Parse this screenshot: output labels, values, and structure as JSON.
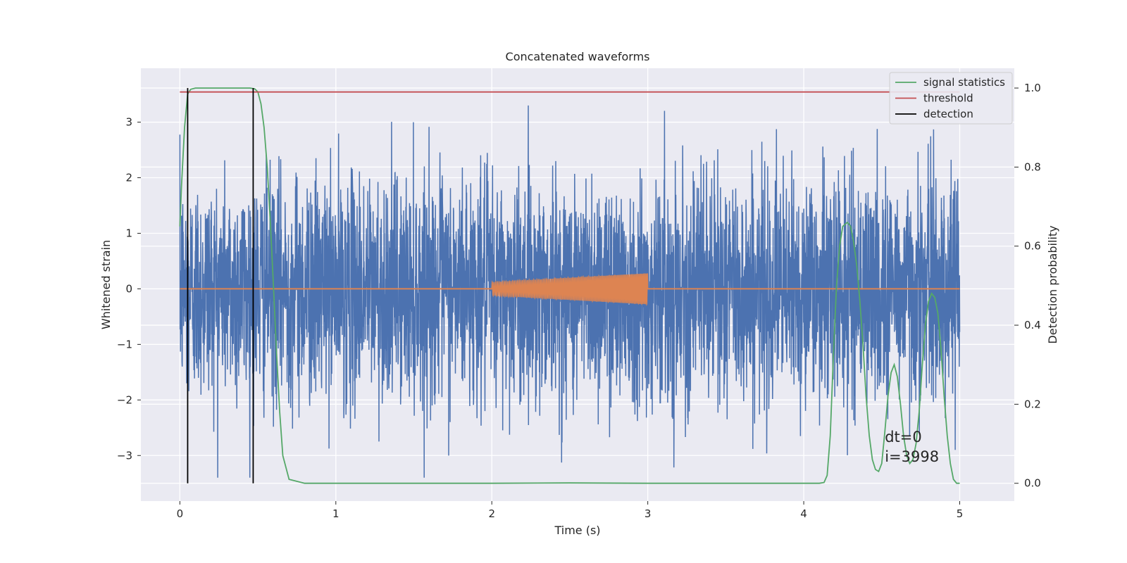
{
  "chart_data": {
    "type": "line",
    "title": "Concatenated waveforms",
    "xlabel": "Time (s)",
    "ylabel": "Whitened strain",
    "ylabel_right": "Detection probability",
    "xlim": [
      -0.25,
      5.35
    ],
    "ylim": [
      -3.82,
      3.97
    ],
    "ylim_right": [
      -0.045,
      1.05
    ],
    "xticks": [
      0,
      1,
      2,
      3,
      4,
      5
    ],
    "yticks": [
      -3,
      -2,
      -1,
      0,
      1,
      2,
      3
    ],
    "yticks_right": [
      0.0,
      0.2,
      0.4,
      0.6,
      0.8,
      1.0
    ],
    "xtick_labels": [
      "0",
      "1",
      "2",
      "3",
      "4",
      "5"
    ],
    "ytick_labels": [
      "−3",
      "−2",
      "−1",
      "0",
      "1",
      "2",
      "3"
    ],
    "ytick_right_labels": [
      "0.0",
      "0.2",
      "0.4",
      "0.6",
      "0.8",
      "1.0"
    ],
    "grid": true,
    "legend_position": "top-right",
    "colors": {
      "noise": "#4c72b0",
      "injection": "#dd8452",
      "signal_statistics": "#55a868",
      "threshold": "#c44e52",
      "detection": "#000000",
      "background": "#eaeaf2",
      "grid": "#ffffff"
    },
    "noise": {
      "x_range": [
        0,
        5
      ],
      "amplitude_sigma": 1.0,
      "peak_max": 3.3,
      "peak_min": -3.4
    },
    "injection": {
      "x_range": [
        2,
        3
      ],
      "amplitude_start": 0.12,
      "amplitude_end": 0.28,
      "cycles": 90
    },
    "legend": [
      {
        "name": "signal statistics",
        "key": "signal_statistics"
      },
      {
        "name": "threshold",
        "key": "threshold"
      },
      {
        "name": "detection",
        "key": "detection"
      }
    ],
    "threshold": {
      "x_range": [
        0,
        5
      ],
      "value": 0.99
    },
    "detections": [
      0.05,
      0.47
    ],
    "signal_statistics": {
      "x": [
        0,
        0.01,
        0.03,
        0.05,
        0.07,
        0.1,
        0.15,
        0.2,
        0.3,
        0.4,
        0.45,
        0.48,
        0.5,
        0.52,
        0.54,
        0.56,
        0.58,
        0.6,
        0.62,
        0.64,
        0.66,
        0.7,
        0.8,
        1.0,
        2.0,
        2.5,
        3.0,
        4.0,
        4.1,
        4.13,
        4.15,
        4.17,
        4.19,
        4.21,
        4.23,
        4.25,
        4.28,
        4.3,
        4.32,
        4.34,
        4.36,
        4.38,
        4.4,
        4.42,
        4.44,
        4.46,
        4.48,
        4.5,
        4.52,
        4.54,
        4.56,
        4.58,
        4.6,
        4.62,
        4.64,
        4.66,
        4.68,
        4.7,
        4.72,
        4.74,
        4.76,
        4.78,
        4.8,
        4.82,
        4.84,
        4.86,
        4.88,
        4.9,
        4.92,
        4.94,
        4.96,
        4.98,
        5.0
      ],
      "y": [
        0.65,
        0.75,
        0.9,
        0.985,
        0.997,
        1.0,
        1.0,
        1.0,
        1.0,
        1.0,
        1.0,
        0.998,
        0.99,
        0.96,
        0.9,
        0.8,
        0.66,
        0.5,
        0.33,
        0.18,
        0.07,
        0.01,
        0.0,
        0.0,
        0.0,
        0.001,
        0.0,
        0.0,
        0.0,
        0.002,
        0.02,
        0.12,
        0.32,
        0.5,
        0.6,
        0.65,
        0.66,
        0.65,
        0.61,
        0.55,
        0.46,
        0.35,
        0.22,
        0.12,
        0.06,
        0.035,
        0.03,
        0.05,
        0.13,
        0.22,
        0.28,
        0.3,
        0.27,
        0.2,
        0.12,
        0.07,
        0.05,
        0.06,
        0.1,
        0.18,
        0.3,
        0.4,
        0.46,
        0.48,
        0.47,
        0.43,
        0.34,
        0.22,
        0.12,
        0.05,
        0.01,
        0.0,
        0.0
      ]
    },
    "annotations": [
      {
        "text": "dt=0",
        "x": 4.52,
        "y": 0.105
      },
      {
        "text": "i=3998",
        "x": 4.52,
        "y": 0.055
      }
    ]
  }
}
